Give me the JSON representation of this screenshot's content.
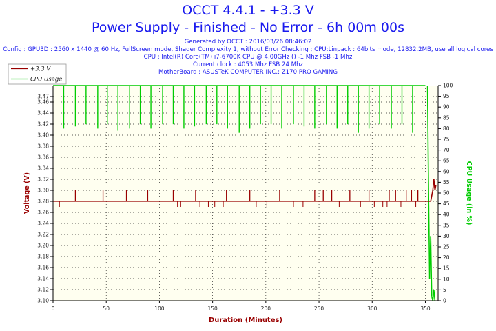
{
  "title": "OCCT 4.4.1 - +3.3 V",
  "subtitle": "Power Supply - Finished - No Error - 6h 00m 00s",
  "info_lines": [
    "Generated by OCCT : 2016/03/26 08:46:02",
    "Config : GPU3D : 2560 x 1440 @ 60 Hz, FullScreen mode, Shader Complexity 1, without Error Checking ; CPU:Linpack : 64bits mode, 12832.2MB, use all logical cores",
    "CPU : Intel(R) Core(TM) i7-6700K CPU @ 4.00GHz () -1 Mhz FSB -1 Mhz",
    "Current clock : 4053 Mhz FSB 24 Mhz",
    "MotherBoard : ASUSTeK COMPUTER INC.: Z170 PRO GAMING"
  ],
  "colors": {
    "voltage": "#990000",
    "cpu": "#00cc00",
    "title": "#1a1aee",
    "plot_bg": "#fffff0"
  },
  "chart_data": {
    "type": "line",
    "xlabel": "Duration (Minutes)",
    "ylabel": "Voltage (V)",
    "y2label": "CPU Usage (in %)",
    "xlim": [
      0,
      362
    ],
    "ylim": [
      3.1,
      3.49
    ],
    "y2lim": [
      0,
      100
    ],
    "x_ticks": [
      0,
      50,
      100,
      150,
      200,
      250,
      300,
      350
    ],
    "y_ticks": [
      "3.10",
      "3.12",
      "3.14",
      "3.16",
      "3.18",
      "3.20",
      "3.22",
      "3.24",
      "3.26",
      "3.28",
      "3.30",
      "3.32",
      "3.34",
      "3.36",
      "3.38",
      "3.40",
      "3.42",
      "3.44",
      "3.46",
      "3.47"
    ],
    "y2_ticks": [
      0,
      5,
      10,
      15,
      20,
      25,
      30,
      35,
      40,
      45,
      50,
      55,
      60,
      65,
      70,
      75,
      80,
      85,
      90,
      95,
      100
    ],
    "grid": true,
    "legend_position": "top-left",
    "series": [
      {
        "name": "+3.3 V",
        "axis": "left",
        "baseline": 3.28,
        "spikes_up": [
          [
            21,
            3.3
          ],
          [
            47,
            3.3
          ],
          [
            69,
            3.3
          ],
          [
            89,
            3.3
          ],
          [
            113,
            3.3
          ],
          [
            134,
            3.3
          ],
          [
            163,
            3.3
          ],
          [
            185,
            3.3
          ],
          [
            213,
            3.3
          ],
          [
            246,
            3.3
          ],
          [
            254,
            3.3
          ],
          [
            262,
            3.3
          ],
          [
            279,
            3.3
          ],
          [
            297,
            3.3
          ],
          [
            316,
            3.3
          ],
          [
            322,
            3.3
          ],
          [
            332,
            3.3
          ],
          [
            337,
            3.3
          ],
          [
            343,
            3.3
          ]
        ],
        "spikes_down": [
          [
            6,
            3.27
          ],
          [
            45,
            3.27
          ],
          [
            117,
            3.27
          ],
          [
            120,
            3.27
          ],
          [
            138,
            3.27
          ],
          [
            146,
            3.27
          ],
          [
            152,
            3.27
          ],
          [
            160,
            3.27
          ],
          [
            170,
            3.27
          ],
          [
            191,
            3.27
          ],
          [
            201,
            3.27
          ],
          [
            226,
            3.27
          ],
          [
            235,
            3.27
          ],
          [
            269,
            3.27
          ],
          [
            289,
            3.27
          ],
          [
            302,
            3.27
          ],
          [
            310,
            3.27
          ],
          [
            314,
            3.27
          ],
          [
            327,
            3.27
          ],
          [
            341,
            3.27
          ]
        ],
        "end_values": [
          [
            355,
            3.28
          ],
          [
            357,
            3.3
          ],
          [
            358,
            3.32
          ],
          [
            359,
            3.3
          ],
          [
            360,
            3.31
          ]
        ]
      },
      {
        "name": "CPU Usage",
        "axis": "right",
        "baseline": 100,
        "dips": [
          [
            10,
            80
          ],
          [
            21,
            81
          ],
          [
            31,
            82
          ],
          [
            42,
            80
          ],
          [
            51,
            82
          ],
          [
            61,
            79
          ],
          [
            72,
            80
          ],
          [
            82,
            82
          ],
          [
            92,
            80
          ],
          [
            103,
            82
          ],
          [
            113,
            82
          ],
          [
            123,
            80
          ],
          [
            133,
            81
          ],
          [
            144,
            82
          ],
          [
            154,
            82
          ],
          [
            164,
            80
          ],
          [
            175,
            78
          ],
          [
            185,
            80
          ],
          [
            195,
            82
          ],
          [
            205,
            82
          ],
          [
            215,
            80
          ],
          [
            226,
            82
          ],
          [
            236,
            81
          ],
          [
            246,
            80
          ],
          [
            257,
            82
          ],
          [
            267,
            80
          ],
          [
            277,
            82
          ],
          [
            287,
            78
          ],
          [
            297,
            80
          ],
          [
            307,
            82
          ],
          [
            318,
            80
          ],
          [
            328,
            82
          ],
          [
            338,
            78
          ]
        ],
        "end_values": [
          [
            352,
            100
          ],
          [
            353,
            50
          ],
          [
            354,
            10
          ],
          [
            355,
            30
          ],
          [
            356,
            2
          ],
          [
            357,
            0
          ],
          [
            358,
            5
          ],
          [
            359,
            0
          ]
        ]
      }
    ]
  }
}
